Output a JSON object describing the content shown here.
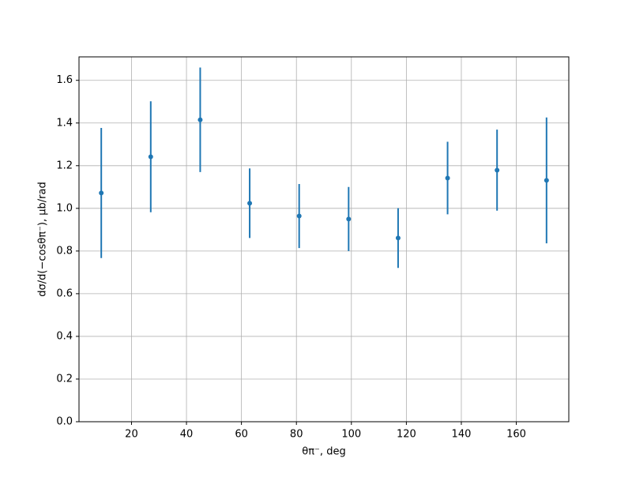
{
  "chart_data": {
    "type": "errorbar",
    "x_label": "θπ⁻, deg",
    "y_label": "dσ/d(−cosθπ⁻), μb/rad",
    "x": [
      9,
      27,
      45,
      63,
      81,
      99,
      117,
      135,
      153,
      171
    ],
    "values": [
      1.072,
      1.242,
      1.415,
      1.024,
      0.964,
      0.95,
      0.861,
      1.142,
      1.179,
      1.131
    ],
    "errors": [
      0.305,
      0.26,
      0.245,
      0.163,
      0.15,
      0.15,
      0.14,
      0.17,
      0.19,
      0.295
    ],
    "color": "#1f77b4",
    "xlim": [
      0.9,
      179.1
    ],
    "ylim": [
      0,
      1.71
    ],
    "xticks": [
      20,
      40,
      60,
      80,
      100,
      120,
      140,
      160
    ],
    "yticks": [
      {
        "value": 0,
        "label": "0.0"
      },
      {
        "value": 0.2,
        "label": "0.2"
      },
      {
        "value": 0.4,
        "label": "0.4"
      },
      {
        "value": 0.6,
        "label": "0.6"
      },
      {
        "value": 0.8,
        "label": "0.8"
      },
      {
        "value": 1.0,
        "label": "1.0"
      },
      {
        "value": 1.2,
        "label": "1.2"
      },
      {
        "value": 1.4,
        "label": "1.4"
      },
      {
        "value": 1.6,
        "label": "1.6"
      }
    ],
    "grid": true
  }
}
